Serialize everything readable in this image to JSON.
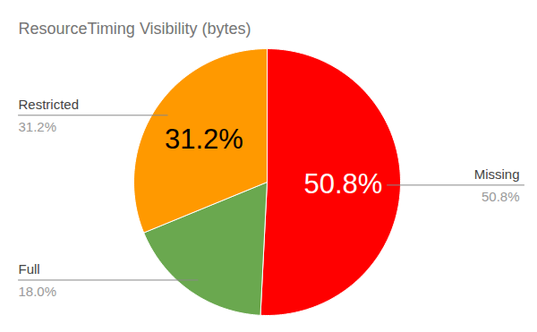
{
  "chart_data": {
    "type": "pie",
    "title": "ResourceTiming Visibility (bytes)",
    "categories": [
      "Missing",
      "Full",
      "Restricted"
    ],
    "values": [
      50.8,
      18.0,
      31.2
    ],
    "value_labels": [
      "50.8%",
      "18.0%",
      "31.2%"
    ],
    "colors": [
      "#ff0000",
      "#6aa84f",
      "#ff9900"
    ],
    "data_labels": true
  }
}
